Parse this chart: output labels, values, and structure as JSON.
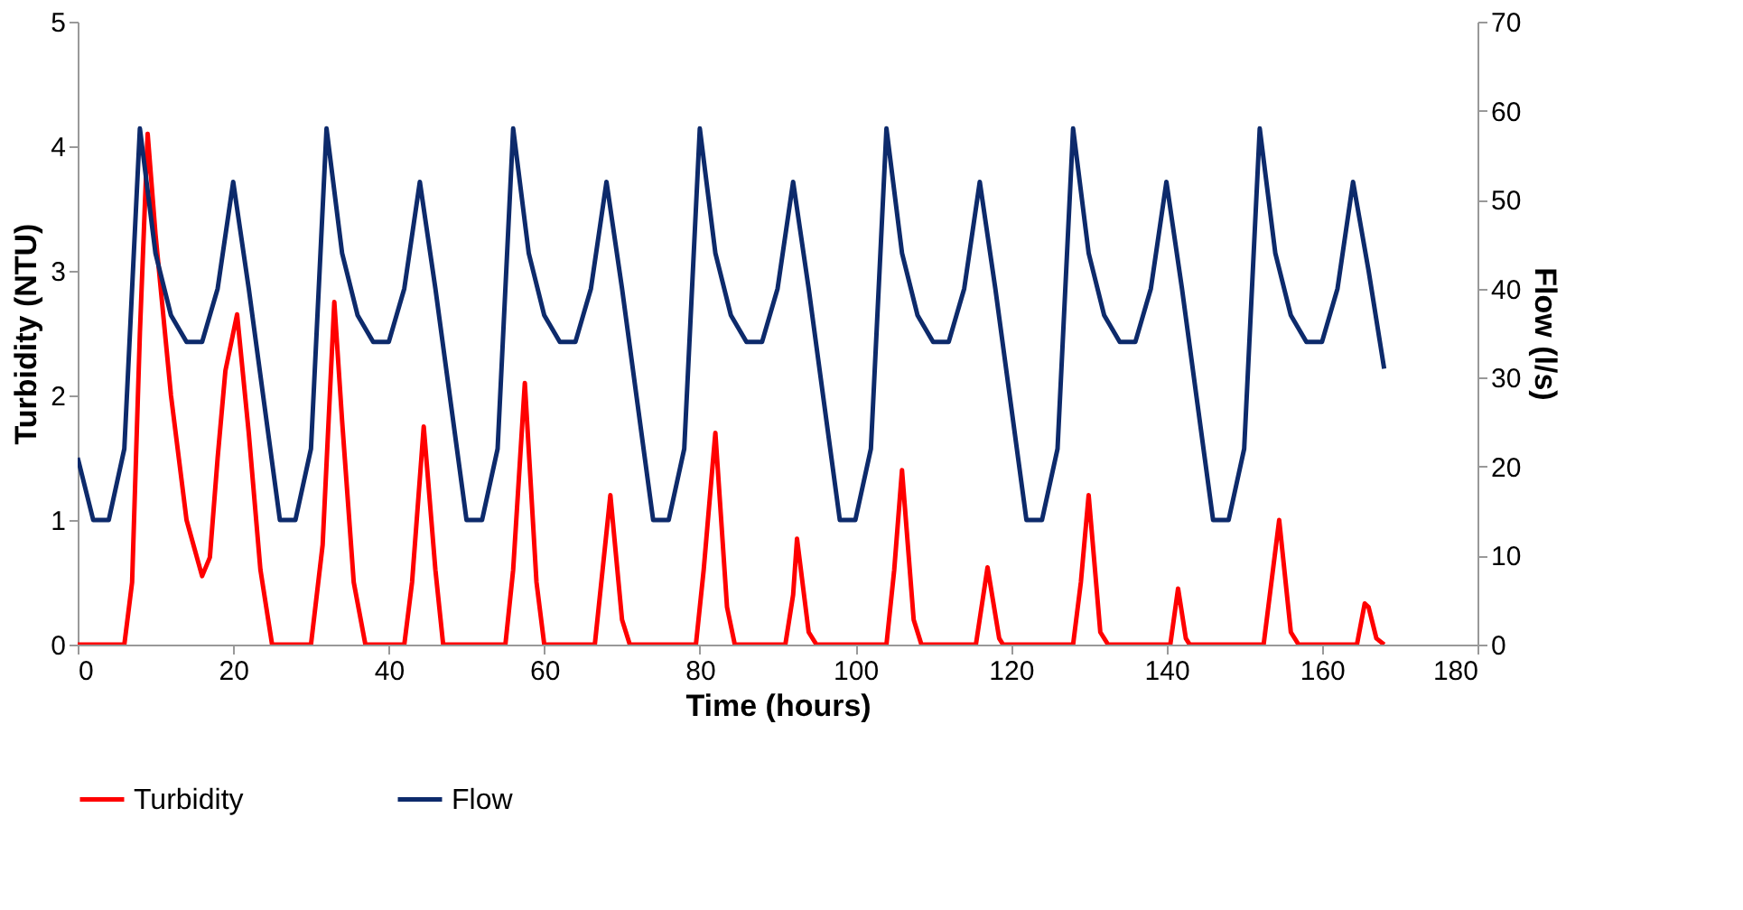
{
  "chart_data": {
    "type": "line",
    "xlabel": "Time (hours)",
    "ylabel": "Turbidity (NTU)",
    "y2label": "Flow (l/s)",
    "xlim": [
      0,
      180
    ],
    "xticks": [
      0,
      20,
      40,
      60,
      80,
      100,
      120,
      140,
      160,
      180
    ],
    "ylim": [
      0,
      5
    ],
    "yticks": [
      0,
      1,
      2,
      3,
      4,
      5
    ],
    "y2lim": [
      0,
      70
    ],
    "y2ticks": [
      0,
      10,
      20,
      30,
      40,
      50,
      60,
      70
    ],
    "grid": false,
    "legend": "bottom",
    "marker": "none",
    "line_style": "solid",
    "series": [
      {
        "name": "Turbidity",
        "color": "#ff0000",
        "x": [
          0,
          6,
          7,
          8,
          9,
          10,
          12,
          14,
          16,
          17,
          18,
          19,
          20.5,
          22,
          23.5,
          25,
          30,
          31.5,
          33,
          34,
          35.5,
          37,
          42,
          43,
          44.5,
          46,
          47,
          55,
          56,
          57.5,
          59,
          60,
          66.5,
          67.5,
          68.5,
          70,
          71,
          79.5,
          80.5,
          82,
          83.5,
          84.5,
          91,
          92,
          92.5,
          94,
          95,
          104,
          105,
          106,
          107.5,
          108.5,
          115.5,
          117,
          118.5,
          119,
          128,
          129,
          130,
          131.5,
          132.5,
          140.5,
          141.5,
          142.5,
          143,
          152.5,
          153.5,
          154.5,
          156,
          157,
          164.5,
          165.5,
          166,
          167,
          168
        ],
        "values": [
          0,
          0,
          0.5,
          2.5,
          4.1,
          3.3,
          2.0,
          1.0,
          0.55,
          0.7,
          1.5,
          2.2,
          2.65,
          1.7,
          0.6,
          0,
          0,
          0.8,
          2.75,
          1.8,
          0.5,
          0,
          0,
          0.5,
          1.75,
          0.6,
          0,
          0,
          0.6,
          2.1,
          0.5,
          0,
          0,
          0.6,
          1.2,
          0.2,
          0,
          0,
          0.6,
          1.7,
          0.3,
          0,
          0,
          0.4,
          0.85,
          0.1,
          0,
          0,
          0.6,
          1.4,
          0.2,
          0,
          0,
          0.62,
          0.05,
          0,
          0,
          0.5,
          1.2,
          0.1,
          0,
          0,
          0.45,
          0.05,
          0,
          0,
          0.5,
          1.0,
          0.1,
          0,
          0,
          0.33,
          0.3,
          0.05,
          0
        ]
      },
      {
        "name": "Flow",
        "color": "#0d2a6b",
        "axis": "y2",
        "x": [
          0,
          2,
          4,
          6,
          8,
          10,
          12,
          14,
          16,
          18,
          20,
          22,
          24,
          26,
          28,
          30,
          32,
          34,
          36,
          38,
          40,
          42,
          44,
          46,
          48,
          50,
          52,
          54,
          56,
          58,
          60,
          62,
          64,
          66,
          68,
          70,
          72,
          74,
          76,
          78,
          80,
          82,
          84,
          86,
          88,
          90,
          92,
          94,
          96,
          98,
          100,
          102,
          104,
          106,
          108,
          110,
          112,
          114,
          116,
          118,
          120,
          122,
          124,
          126,
          128,
          130,
          132,
          134,
          136,
          138,
          140,
          142,
          144,
          146,
          148,
          150,
          152,
          154,
          156,
          158,
          160,
          162,
          164,
          166,
          168
        ],
        "values": [
          21,
          14,
          14,
          22,
          58,
          44,
          37,
          34,
          34,
          40,
          52,
          40,
          27,
          14,
          14,
          22,
          58,
          44,
          37,
          34,
          34,
          40,
          52,
          40,
          27,
          14,
          14,
          22,
          58,
          44,
          37,
          34,
          34,
          40,
          52,
          40,
          27,
          14,
          14,
          22,
          58,
          44,
          37,
          34,
          34,
          40,
          52,
          40,
          27,
          14,
          14,
          22,
          58,
          44,
          37,
          34,
          34,
          40,
          52,
          40,
          27,
          14,
          14,
          22,
          58,
          44,
          37,
          34,
          34,
          40,
          52,
          40,
          27,
          14,
          14,
          22,
          58,
          44,
          37,
          34,
          34,
          40,
          52,
          42,
          31
        ]
      }
    ]
  }
}
